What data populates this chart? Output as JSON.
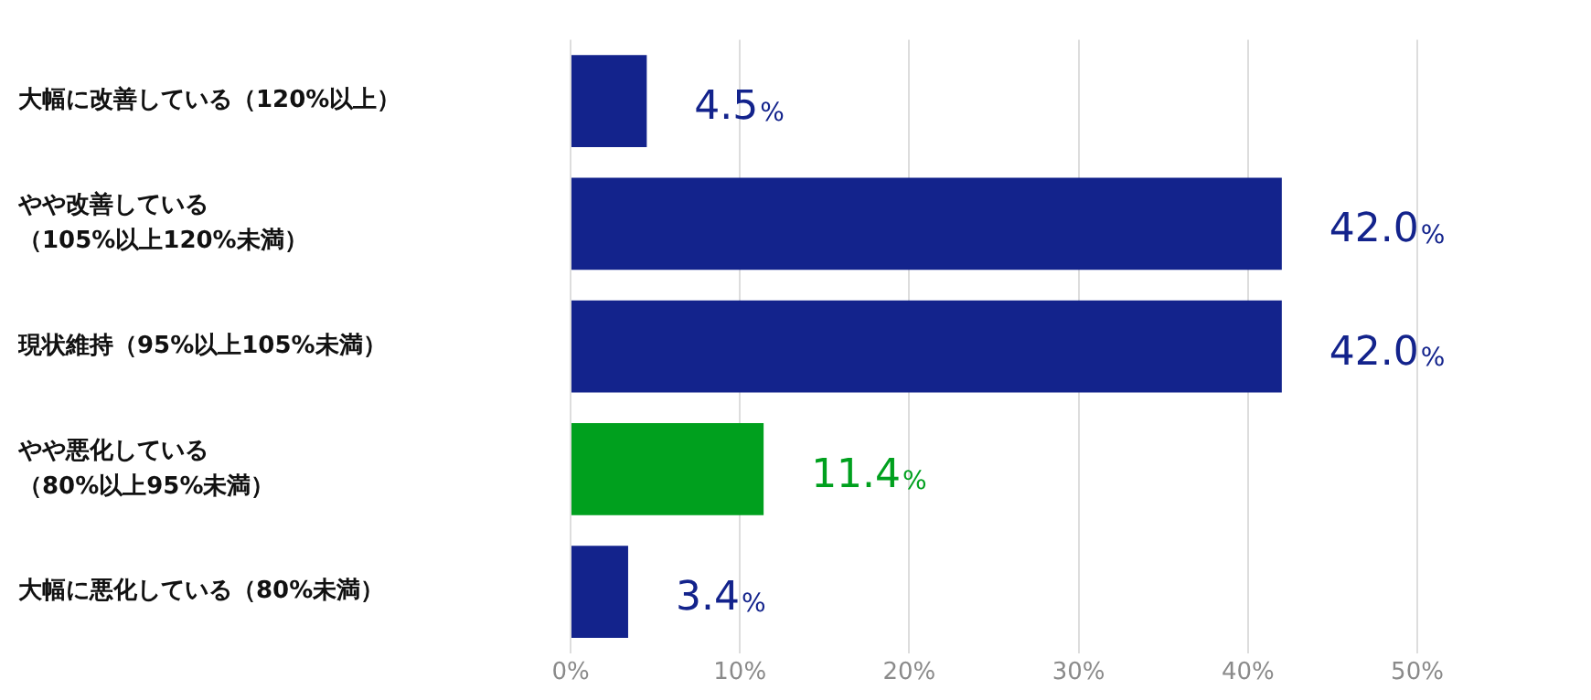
{
  "chart_data": {
    "type": "bar",
    "orientation": "horizontal",
    "categories": [
      "大幅に改善している（120%以上）",
      "やや改善している（105%以上120%未満）",
      "現状維持（95%以上105%未満）",
      "やや悪化している（80%以上95%未満）",
      "大幅に悪化している（80%未満）"
    ],
    "values": [
      4.5,
      42.0,
      42.0,
      11.4,
      3.4
    ],
    "colors": [
      "#13238c",
      "#13238c",
      "#13238c",
      "#00a01e",
      "#13238c"
    ],
    "value_labels": [
      "4.5%",
      "42.0%",
      "42.0%",
      "11.4%",
      "3.4%"
    ],
    "xlim": [
      0,
      50
    ],
    "xticks": [
      {
        "value": 0,
        "label": "0%"
      },
      {
        "value": 10,
        "label": "10%"
      },
      {
        "value": 20,
        "label": "20%"
      },
      {
        "value": 30,
        "label": "30%"
      },
      {
        "value": 40,
        "label": "40%"
      },
      {
        "value": 50,
        "label": "50%"
      }
    ],
    "grid": "x",
    "legend": false
  }
}
